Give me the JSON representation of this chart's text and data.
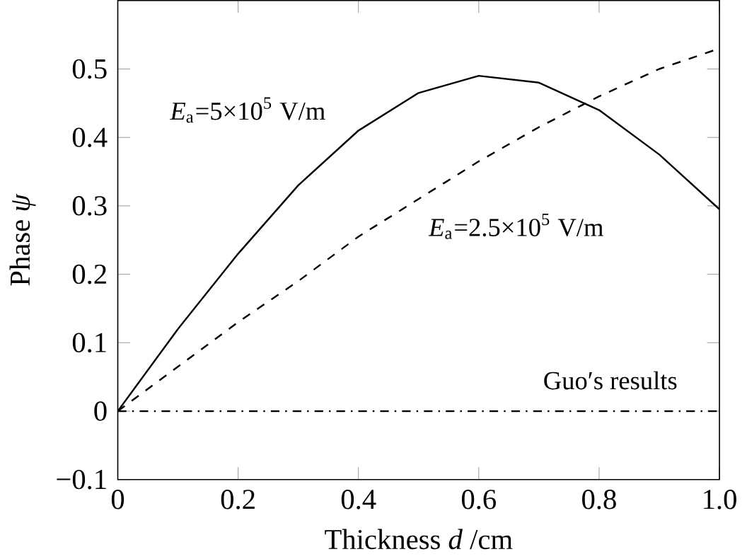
{
  "chart_data": {
    "type": "line",
    "xlabel": "Thickness *d* /cm",
    "ylabel": "Phase *ψ*",
    "x": [
      0,
      0.1,
      0.2,
      0.3,
      0.4,
      0.5,
      0.6,
      0.7,
      0.8,
      0.9,
      1.0
    ],
    "series": [
      {
        "name": "*E*$_{a}$=5×10$^{5}$ V/m",
        "color": "#000000",
        "line_style": "solid",
        "values": [
          0,
          0.12,
          0.23,
          0.33,
          0.41,
          0.465,
          0.49,
          0.48,
          0.44,
          0.375,
          0.295
        ]
      },
      {
        "name": "*E*$_{a}$=2.5×10$^{5}$ V/m",
        "color": "#000000",
        "line_style": "dashed",
        "values": [
          0,
          0.065,
          0.13,
          0.19,
          0.255,
          0.31,
          0.365,
          0.415,
          0.46,
          0.5,
          0.53
        ]
      },
      {
        "name": "Guo′s results",
        "color": "#000000",
        "line_style": "dashdot",
        "values": [
          0,
          0,
          0,
          0,
          0,
          0,
          0,
          0,
          0,
          0,
          0
        ]
      }
    ],
    "xlim": [
      0,
      1.0
    ],
    "ylim": [
      -0.1,
      0.6
    ],
    "xticks": [
      0,
      0.2,
      0.4,
      0.6,
      0.8,
      {
        "value": 1.0,
        "label": "1.0"
      }
    ],
    "yticks": [
      {
        "value": -0.1,
        "label": "−0.1"
      },
      0,
      0.1,
      0.2,
      0.3,
      0.4,
      0.5
    ],
    "legend": false,
    "grid": false,
    "marker": "none"
  }
}
